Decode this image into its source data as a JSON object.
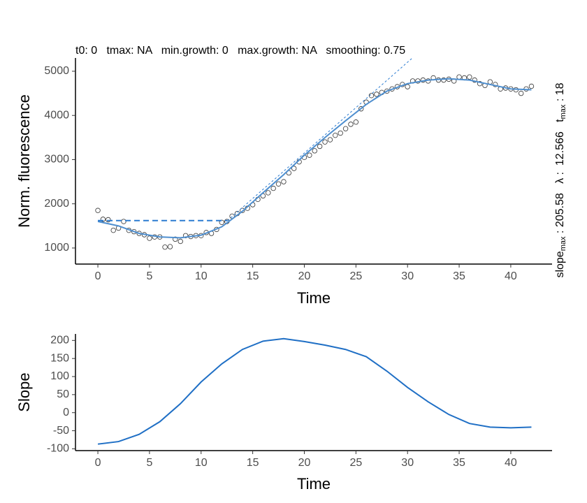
{
  "chart_data": [
    {
      "type": "scatter",
      "subtitle": "t0: 0   tmax: NA   min.growth: 0   max.growth: NA   smoothing: 0.75",
      "x_label": "Time",
      "y_label": "Norm. fluorescence",
      "xlim": [
        -2.17,
        44.0
      ],
      "ylim": [
        636,
        5300
      ],
      "xticks": [
        0,
        5,
        10,
        15,
        20,
        25,
        30,
        35,
        40
      ],
      "yticks": [
        1000,
        2000,
        3000,
        4000,
        5000
      ],
      "annotations": [
        {
          "text": "slope",
          "sub": "max",
          "value": " : 205.58"
        },
        {
          "text": "λ",
          "value": " :  12.566"
        },
        {
          "text": "t",
          "sub": "max",
          "value": " : 18"
        }
      ],
      "series": [
        {
          "style": "points",
          "color": "#333333",
          "x": [
            0,
            0.5,
            1,
            1.5,
            2,
            2.5,
            3,
            3.5,
            4,
            4.5,
            5,
            5.5,
            6,
            6.5,
            7,
            7.5,
            8,
            8.5,
            9,
            9.5,
            10,
            10.5,
            11,
            11.5,
            12,
            12.5,
            13,
            13.5,
            14,
            14.5,
            15,
            15.5,
            16,
            16.5,
            17,
            17.5,
            18,
            18.5,
            19,
            19.5,
            20,
            20.5,
            21,
            21.5,
            22,
            22.5,
            23,
            23.5,
            24,
            24.5,
            25,
            25.5,
            26,
            26.5,
            27,
            27.5,
            28,
            28.5,
            29,
            29.5,
            30,
            30.5,
            31,
            31.5,
            32,
            32.5,
            33,
            33.5,
            34,
            34.5,
            35,
            35.5,
            36,
            36.5,
            37,
            37.5,
            38,
            38.5,
            39,
            39.5,
            40,
            40.5,
            41,
            41.5,
            42
          ],
          "values": [
            1850,
            1650,
            1640,
            1400,
            1450,
            1600,
            1400,
            1370,
            1330,
            1300,
            1220,
            1250,
            1250,
            1020,
            1030,
            1200,
            1150,
            1280,
            1260,
            1280,
            1280,
            1350,
            1330,
            1420,
            1580,
            1600,
            1720,
            1780,
            1850,
            1900,
            1980,
            2100,
            2180,
            2250,
            2350,
            2450,
            2500,
            2700,
            2800,
            2950,
            3050,
            3100,
            3200,
            3300,
            3400,
            3450,
            3550,
            3600,
            3700,
            3800,
            3850,
            4150,
            4300,
            4450,
            4480,
            4520,
            4550,
            4600,
            4650,
            4700,
            4650,
            4780,
            4780,
            4800,
            4780,
            4850,
            4800,
            4800,
            4820,
            4780,
            4870,
            4850,
            4870,
            4800,
            4720,
            4680,
            4760,
            4700,
            4600,
            4620,
            4600,
            4580,
            4500,
            4600,
            4660
          ]
        },
        {
          "style": "line",
          "color": "#4f8fcf",
          "x": [
            0,
            2,
            4,
            6,
            8,
            10,
            12,
            14,
            16,
            18,
            20,
            22,
            24,
            26,
            28,
            30,
            32,
            34,
            36,
            38,
            40,
            42
          ],
          "values": [
            1600,
            1500,
            1330,
            1250,
            1230,
            1290,
            1480,
            1830,
            2250,
            2660,
            3100,
            3500,
            3880,
            4250,
            4550,
            4720,
            4800,
            4830,
            4800,
            4700,
            4600,
            4580
          ]
        },
        {
          "style": "dashed",
          "color": "#2a7bd1",
          "x": [
            0,
            12.566
          ],
          "values": [
            1620,
            1620
          ]
        },
        {
          "style": "dotted",
          "color": "#2a7bd1",
          "x": [
            12.566,
            30.5
          ],
          "values": [
            1620,
            5307
          ]
        }
      ]
    },
    {
      "type": "line",
      "x_label": "Time",
      "y_label": "Slope",
      "xlim": [
        -2.17,
        44.0
      ],
      "ylim": [
        -105,
        218
      ],
      "xticks": [
        0,
        5,
        10,
        15,
        20,
        25,
        30,
        35,
        40
      ],
      "yticks": [
        -100,
        -50,
        0,
        50,
        100,
        150,
        200
      ],
      "series": [
        {
          "style": "line",
          "color": "#1f6fc5",
          "x": [
            0,
            2,
            4,
            6,
            8,
            10,
            12,
            14,
            16,
            18,
            20,
            22,
            24,
            26,
            28,
            30,
            32,
            34,
            36,
            38,
            40,
            42
          ],
          "values": [
            -87,
            -80,
            -60,
            -25,
            25,
            85,
            135,
            175,
            198,
            205,
            197,
            187,
            175,
            155,
            115,
            70,
            30,
            -5,
            -30,
            -40,
            -42,
            -40
          ]
        }
      ]
    }
  ]
}
